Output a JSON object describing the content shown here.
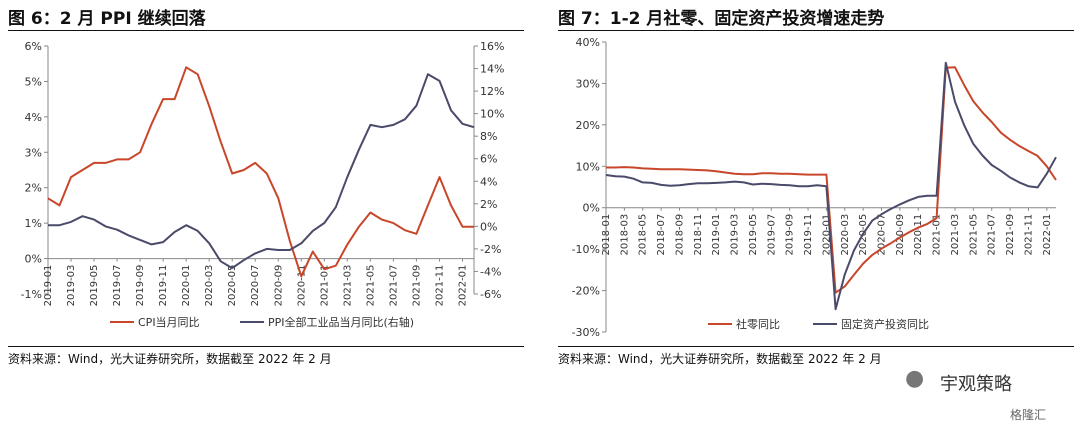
{
  "watermark": {
    "brand": "宇观策略",
    "badge": "格隆汇"
  },
  "chart_data": [
    {
      "type": "line",
      "title": "图 6：2 月 PPI 继续回落",
      "source": "资料来源：Wind，光大证券研究所，数据截至 2022 年 2 月",
      "categories": [
        "2019-01",
        "2019-02",
        "2019-03",
        "2019-04",
        "2019-05",
        "2019-06",
        "2019-07",
        "2019-08",
        "2019-09",
        "2019-10",
        "2019-11",
        "2019-12",
        "2020-01",
        "2020-02",
        "2020-03",
        "2020-04",
        "2020-05",
        "2020-06",
        "2020-07",
        "2020-08",
        "2020-09",
        "2020-10",
        "2020-11",
        "2020-12",
        "2021-01",
        "2021-02",
        "2021-03",
        "2021-04",
        "2021-05",
        "2021-06",
        "2021-07",
        "2021-08",
        "2021-09",
        "2021-10",
        "2021-11",
        "2021-12",
        "2022-01",
        "2022-02"
      ],
      "xtick_labels": [
        "2019-01",
        "2019-03",
        "2019-05",
        "2019-07",
        "2019-09",
        "2019-11",
        "2020-01",
        "2020-03",
        "2020-05",
        "2020-07",
        "2020-09",
        "2020-11",
        "2021-01",
        "2021-03",
        "2021-05",
        "2021-07",
        "2021-09",
        "2021-11",
        "2022-01"
      ],
      "yleft": {
        "ylim": [
          -1,
          6
        ],
        "ticks": [
          "-1%",
          "0%",
          "1%",
          "2%",
          "3%",
          "4%",
          "5%",
          "6%"
        ]
      },
      "yright": {
        "ylim": [
          -6,
          16
        ],
        "ticks": [
          "-6%",
          "-4%",
          "-2%",
          "0%",
          "2%",
          "4%",
          "6%",
          "8%",
          "10%",
          "12%",
          "14%",
          "16%"
        ]
      },
      "series": [
        {
          "name": "CPI当月同比",
          "axis": "left",
          "color": "#c8462a",
          "values": [
            1.7,
            1.5,
            2.3,
            2.5,
            2.7,
            2.7,
            2.8,
            2.8,
            3.0,
            3.8,
            4.5,
            4.5,
            5.4,
            5.2,
            4.3,
            3.3,
            2.4,
            2.5,
            2.7,
            2.4,
            1.7,
            0.5,
            -0.5,
            0.2,
            -0.3,
            -0.2,
            0.4,
            0.9,
            1.3,
            1.1,
            1.0,
            0.8,
            0.7,
            1.5,
            2.3,
            1.5,
            0.9,
            0.9
          ]
        },
        {
          "name": "PPI全部工业品当月同比(右轴)",
          "axis": "right",
          "color": "#4a4a6a",
          "values": [
            0.1,
            0.1,
            0.4,
            0.9,
            0.6,
            0.0,
            -0.3,
            -0.8,
            -1.2,
            -1.6,
            -1.4,
            -0.5,
            0.1,
            -0.4,
            -1.5,
            -3.1,
            -3.7,
            -3.0,
            -2.4,
            -2.0,
            -2.1,
            -2.1,
            -1.5,
            -0.4,
            0.3,
            1.7,
            4.4,
            6.8,
            9.0,
            8.8,
            9.0,
            9.5,
            10.7,
            13.5,
            12.9,
            10.3,
            9.1,
            8.8
          ]
        }
      ]
    },
    {
      "type": "line",
      "title": "图 7：1-2 月社零、固定资产投资增速走势",
      "source": "资料来源：Wind，光大证券研究所，数据截至 2022 年 2 月",
      "categories": [
        "2018-01",
        "2018-02",
        "2018-03",
        "2018-04",
        "2018-05",
        "2018-06",
        "2018-07",
        "2018-08",
        "2018-09",
        "2018-10",
        "2018-11",
        "2018-12",
        "2019-01",
        "2019-02",
        "2019-03",
        "2019-04",
        "2019-05",
        "2019-06",
        "2019-07",
        "2019-08",
        "2019-09",
        "2019-10",
        "2019-11",
        "2019-12",
        "2020-01",
        "2020-02",
        "2020-03",
        "2020-04",
        "2020-05",
        "2020-06",
        "2020-07",
        "2020-08",
        "2020-09",
        "2020-10",
        "2020-11",
        "2020-12",
        "2021-01",
        "2021-02",
        "2021-03",
        "2021-04",
        "2021-05",
        "2021-06",
        "2021-07",
        "2021-08",
        "2021-09",
        "2021-10",
        "2021-11",
        "2021-12",
        "2022-01",
        "2022-02"
      ],
      "xtick_labels": [
        "2018-01",
        "2018-03",
        "2018-05",
        "2018-07",
        "2018-09",
        "2018-11",
        "2019-01",
        "2019-03",
        "2019-05",
        "2019-07",
        "2019-09",
        "2019-11",
        "2020-01",
        "2020-03",
        "2020-05",
        "2020-07",
        "2020-09",
        "2020-11",
        "2021-01",
        "2021-03",
        "2021-05",
        "2021-07",
        "2021-09",
        "2021-11",
        "2022-01"
      ],
      "yleft": {
        "ylim": [
          -30,
          40
        ],
        "ticks": [
          "-30%",
          "-20%",
          "-10%",
          "0%",
          "10%",
          "20%",
          "30%",
          "40%"
        ]
      },
      "series": [
        {
          "name": "社零同比",
          "color": "#c8462a",
          "values": [
            9.7,
            9.7,
            9.8,
            9.7,
            9.5,
            9.4,
            9.3,
            9.3,
            9.3,
            9.2,
            9.1,
            9.0,
            8.8,
            8.5,
            8.2,
            8.1,
            8.1,
            8.3,
            8.3,
            8.2,
            8.2,
            8.1,
            8.0,
            8.0,
            8.0,
            -20.5,
            -19.0,
            -16.2,
            -13.5,
            -11.4,
            -9.9,
            -8.6,
            -7.2,
            -5.9,
            -4.8,
            -3.9,
            -2.5,
            33.8,
            33.9,
            29.6,
            25.7,
            23.0,
            20.7,
            18.1,
            16.4,
            14.9,
            13.7,
            12.5,
            10.0,
            6.7
          ]
        },
        {
          "name": "固定资产投资同比",
          "color": "#4a4a6a",
          "values": [
            7.9,
            7.6,
            7.5,
            7.0,
            6.1,
            6.0,
            5.5,
            5.3,
            5.4,
            5.7,
            5.9,
            5.9,
            6.0,
            6.1,
            6.3,
            6.1,
            5.6,
            5.8,
            5.7,
            5.5,
            5.4,
            5.2,
            5.2,
            5.4,
            5.2,
            -24.5,
            -16.1,
            -10.3,
            -6.3,
            -3.1,
            -1.6,
            -0.3,
            0.8,
            1.8,
            2.6,
            2.9,
            2.9,
            35.0,
            25.6,
            19.9,
            15.4,
            12.6,
            10.3,
            8.9,
            7.3,
            6.1,
            5.2,
            4.9,
            8.2,
            12.2
          ]
        }
      ]
    }
  ]
}
